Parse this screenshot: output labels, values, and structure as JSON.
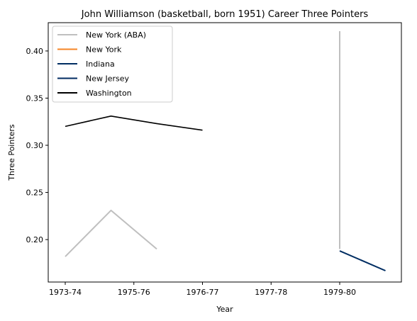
{
  "chart_data": {
    "type": "line",
    "title": "John Williamson (basketball, born 1951) Career Three Pointers",
    "xlabel": "Year",
    "ylabel": "Three Pointers",
    "x_ticks": [
      "1973-74",
      "1975-76",
      "1976-77",
      "1977-78",
      "1979-80"
    ],
    "y_ticks": [
      "0.20",
      "0.25",
      "0.30",
      "0.35",
      "0.40"
    ],
    "ylim": [
      0.155,
      0.43
    ],
    "grid": false,
    "legend_position": "upper-left",
    "series": [
      {
        "name": "New York (ABA)",
        "color": "#bfbfbf",
        "segments": [
          [
            [
              0,
              0.182
            ],
            [
              1,
              0.231
            ],
            [
              2,
              0.19
            ]
          ],
          [
            [
              6,
              0.421
            ],
            [
              6,
              0.19
            ]
          ]
        ]
      },
      {
        "name": "New York",
        "color": "#f58426",
        "segments": []
      },
      {
        "name": "Indiana",
        "color": "#002d62",
        "segments": [
          [
            [
              6,
              0.188
            ],
            [
              7,
              0.167
            ]
          ]
        ]
      },
      {
        "name": "New Jersey",
        "color": "#002a60",
        "segments": []
      },
      {
        "name": "Washington",
        "color": "#000000",
        "segments": [
          [
            [
              0,
              0.32
            ],
            [
              1,
              0.331
            ],
            [
              2,
              0.323
            ],
            [
              3,
              0.316
            ]
          ]
        ]
      }
    ]
  }
}
